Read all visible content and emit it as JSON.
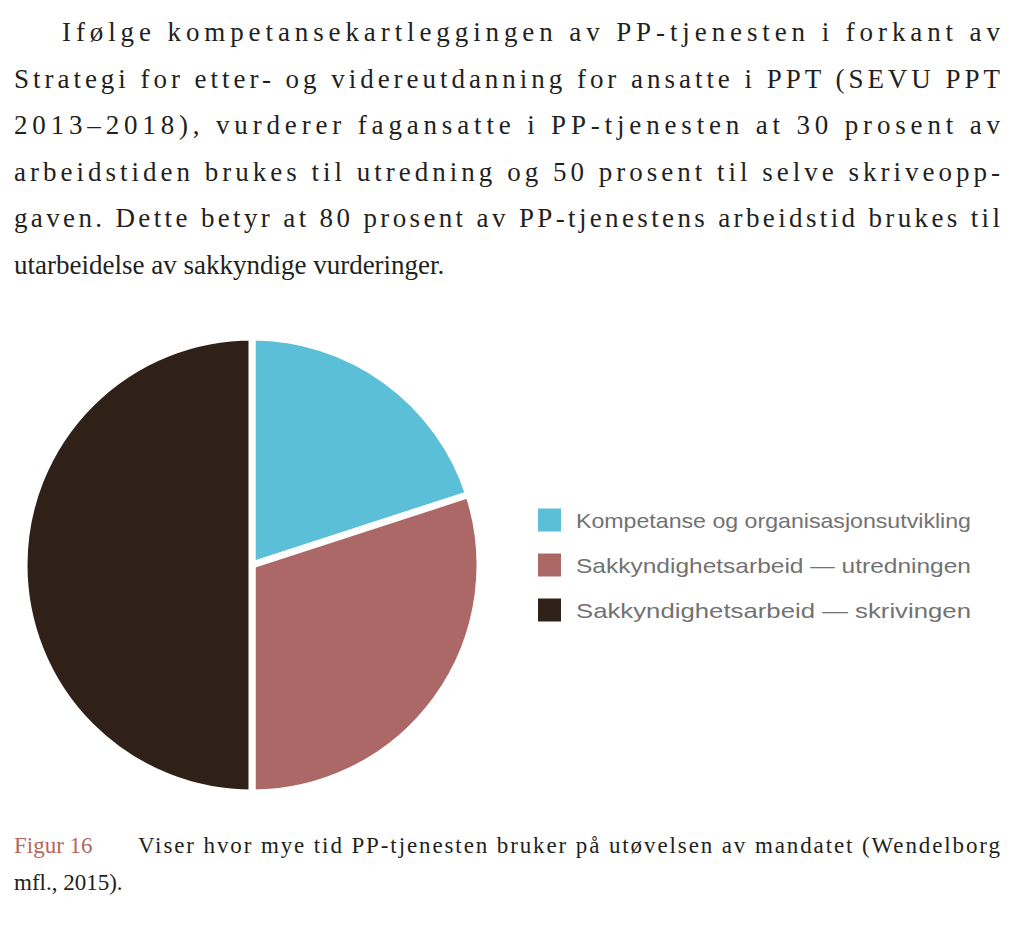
{
  "paragraph": [
    "Ifølge kompetansekartleggingen av PP-tjenesten i forkant av",
    "Strategi for etter- og videreutdanning for ansatte i PPT (SEVU PPT",
    "2013–2018), vurderer fagansatte i PP-tjenesten at 30 prosent av",
    "arbeidstiden brukes til utredning og 50 prosent til selve skriveopp-",
    "gaven. Dette betyr at 80 prosent av PP-tjenestens arbeidstid brukes til",
    "utarbeidelse av sakkyndige vurderinger."
  ],
  "chart_data": {
    "type": "pie",
    "figure_label": "Figur 16",
    "title": [
      "Viser hvor mye tid PP-tjenesten bruker på utøvelsen av mandatet (Wendelborg",
      "mfl., 2015)."
    ],
    "categories": [
      "Kompetanse og organisasjonsutvikling",
      "Sakkyndighetsarbeid — utredningen",
      "Sakkyndighetsarbeid — skrivingen"
    ],
    "values": [
      20,
      30,
      50
    ],
    "colors": [
      "#5bbfd7",
      "#ab6866",
      "#2f2117"
    ],
    "legend": "right"
  }
}
